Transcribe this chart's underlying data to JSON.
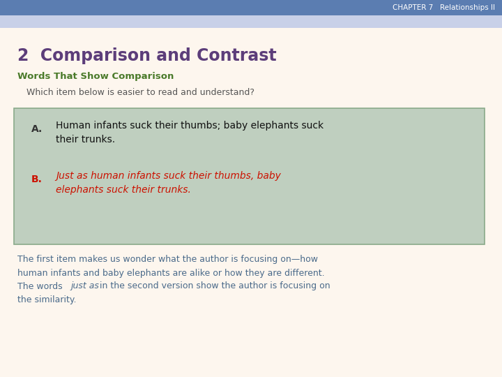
{
  "header_text": "CHAPTER 7   Relationships II",
  "header_bg": "#5b7db1",
  "header_accent_bg": "#c8d0e8",
  "main_bg": "#fdf6ee",
  "title": "2  Comparison and Contrast",
  "title_color": "#5c3d7a",
  "subtitle": "Words That Show Comparison",
  "subtitle_color": "#4a7a2a",
  "question": "Which item below is easier to read and understand?",
  "question_color": "#555555",
  "box_bg": "#bfcfbf",
  "box_border": "#8aaa8a",
  "item_a_label_color": "#333333",
  "item_a_text_color": "#111111",
  "item_b_label_color": "#cc1100",
  "item_b_text_color": "#cc1100",
  "body_text_color": "#4a6a8a"
}
